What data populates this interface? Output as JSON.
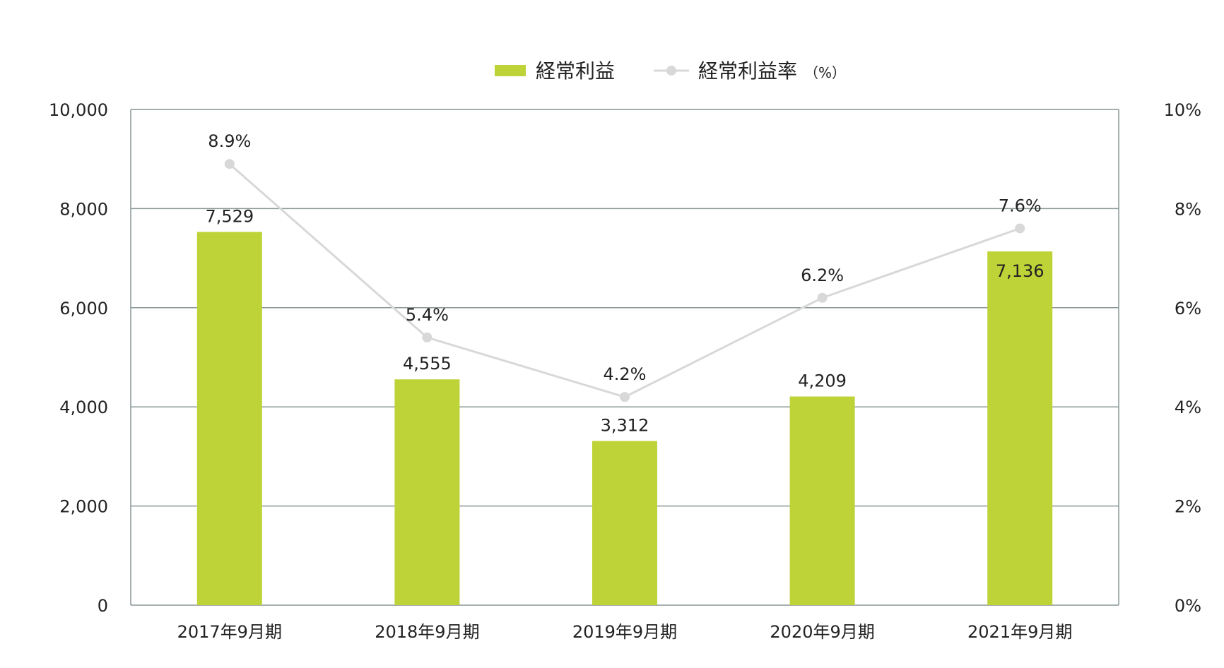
{
  "chart_data": {
    "type": "bar+line",
    "categories": [
      "2017年9月期",
      "2018年9月期",
      "2019年9月期",
      "2020年9月期",
      "2021年9月期"
    ],
    "series": [
      {
        "name": "経常利益",
        "type": "bar",
        "axis": "left",
        "values": [
          7529,
          4555,
          3312,
          4209,
          7136
        ],
        "labels": [
          "7,529",
          "4,555",
          "3,312",
          "4,209",
          "7,136"
        ],
        "color": "#bdd337"
      },
      {
        "name": "経常利益率（%）",
        "type": "line",
        "axis": "right",
        "values": [
          8.9,
          5.4,
          4.2,
          6.2,
          7.6
        ],
        "labels": [
          "8.9%",
          "5.4%",
          "4.2%",
          "6.2%",
          "7.6%"
        ],
        "color": "#d8d8d8"
      }
    ],
    "left_axis": {
      "ylim": [
        0,
        10000
      ],
      "ticks": [
        0,
        2000,
        4000,
        6000,
        8000,
        10000
      ],
      "tick_labels": [
        "0",
        "2,000",
        "4,000",
        "6,000",
        "8,000",
        "10,000"
      ]
    },
    "right_axis": {
      "ylim": [
        0,
        10
      ],
      "ticks": [
        0,
        2,
        4,
        6,
        8,
        10
      ],
      "tick_labels": [
        "0%",
        "2%",
        "4%",
        "6%",
        "8%",
        "10%"
      ]
    },
    "legend": {
      "position": "top-center",
      "bar_label": "経常利益",
      "line_label": "経常利益率",
      "line_unit": "（%）"
    },
    "grid": true
  }
}
